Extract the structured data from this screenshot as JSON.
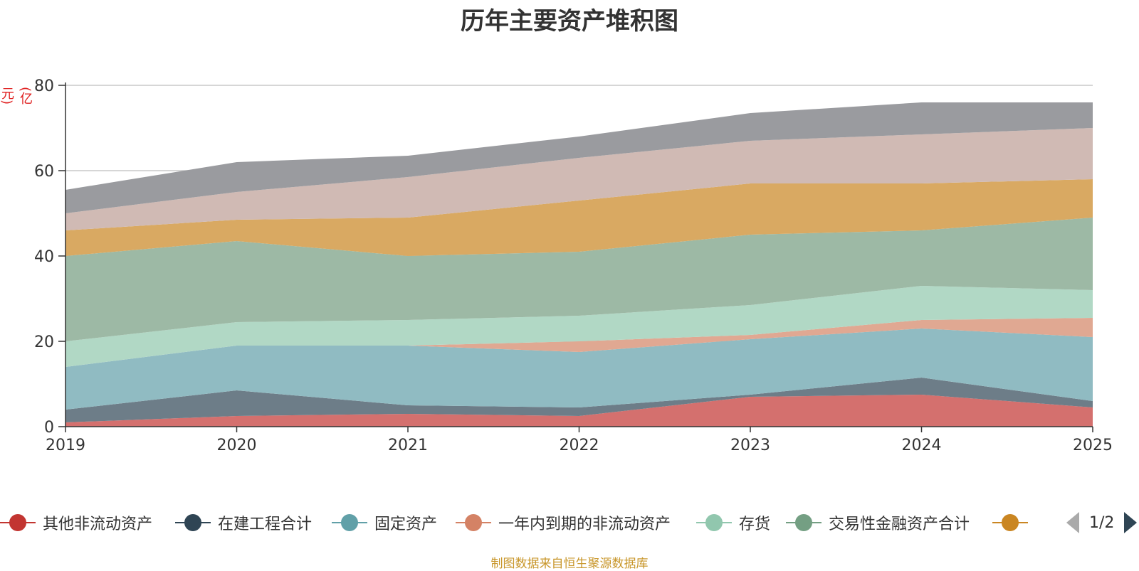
{
  "chart_data": {
    "type": "area",
    "stacked": true,
    "title": "历年主要资产堆积图",
    "unit_label": "(亿元)",
    "categories": [
      "2019",
      "2020",
      "2021",
      "2022",
      "2023",
      "2024",
      "2025"
    ],
    "ylim": [
      0,
      80
    ],
    "yticks": [
      0,
      20,
      40,
      60,
      80
    ],
    "grid": true,
    "series": [
      {
        "name": "其他非流动资产",
        "color": "#c23531",
        "area_color": "#d4706e",
        "values": [
          1.0,
          2.5,
          3.0,
          2.5,
          7.0,
          7.5,
          4.5
        ]
      },
      {
        "name": "在建工程合计",
        "color": "#2f4554",
        "area_color": "#6d7d88",
        "values": [
          3.0,
          6.0,
          2.0,
          2.0,
          0.5,
          4.0,
          1.5
        ]
      },
      {
        "name": "固定资产",
        "color": "#61a0a8",
        "area_color": "#90bbc2",
        "values": [
          10.0,
          10.5,
          14.0,
          13.0,
          13.0,
          11.5,
          15.0
        ]
      },
      {
        "name": "一年内到期的非流动资产",
        "color": "#d48265",
        "area_color": "#e0a892",
        "values": [
          0,
          0,
          0,
          2.5,
          1.0,
          2.0,
          4.5
        ]
      },
      {
        "name": "存货",
        "color": "#91c7ae",
        "area_color": "#b1d8c5",
        "values": [
          6.0,
          5.5,
          6.0,
          6.0,
          7.0,
          8.0,
          6.5
        ]
      },
      {
        "name": "交易性金融资产合计",
        "color": "#749f83",
        "area_color": "#9db9a5",
        "values": [
          20.0,
          19.0,
          15.0,
          15.0,
          16.5,
          13.0,
          17.0
        ]
      },
      {
        "name": "",
        "color": "#ca8622",
        "area_color": "#d9a962",
        "values": [
          6.0,
          5.0,
          9.0,
          12.0,
          12.0,
          11.0,
          9.0
        ]
      },
      {
        "name": "",
        "color": "#bda29a",
        "area_color": "#d0bab4",
        "values": [
          4.0,
          6.5,
          9.5,
          10.0,
          10.0,
          11.5,
          12.0
        ]
      },
      {
        "name": "",
        "color": "#6e7074",
        "area_color": "#9a9b9f",
        "values": [
          5.5,
          7.0,
          5.0,
          5.0,
          6.5,
          7.5,
          6.0
        ]
      }
    ],
    "legend": {
      "position": "bottom",
      "page": "1/2"
    }
  },
  "source_note": "制图数据来自恒生聚源数据库"
}
